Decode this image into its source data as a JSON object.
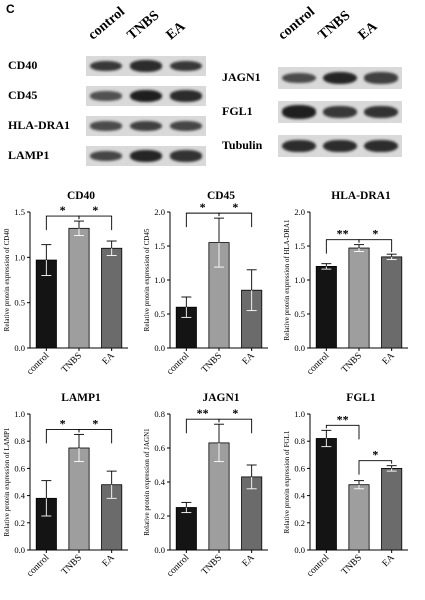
{
  "panel_letter": "C",
  "blots": [
    {
      "lanes": [
        "control",
        "TNBS",
        "EA"
      ],
      "rows": [
        {
          "label": "CD40",
          "intensity": [
            0.75,
            0.85,
            0.75
          ]
        },
        {
          "label": "CD45",
          "intensity": [
            0.55,
            0.95,
            0.85
          ]
        },
        {
          "label": "HLA-DRA1",
          "intensity": [
            0.6,
            0.7,
            0.65
          ]
        },
        {
          "label": "LAMP1",
          "intensity": [
            0.65,
            0.9,
            0.8
          ]
        }
      ]
    },
    {
      "lanes": [
        "control",
        "TNBS",
        "EA"
      ],
      "rows": [
        {
          "label": "JAGN1",
          "intensity": [
            0.6,
            0.9,
            0.7
          ]
        },
        {
          "label": "FGL1",
          "intensity": [
            0.95,
            0.75,
            0.8
          ]
        },
        {
          "label": "Tubulin",
          "intensity": [
            0.85,
            0.85,
            0.85
          ]
        }
      ]
    }
  ],
  "chart_data": [
    {
      "type": "bar",
      "title": "CD40",
      "ylabel": "Relative protein expression of CD40",
      "categories": [
        "control",
        "TNBS",
        "EA"
      ],
      "values": [
        0.97,
        1.32,
        1.1
      ],
      "errors": [
        0.17,
        0.08,
        0.08
      ],
      "ylim": [
        0,
        1.5
      ],
      "yticks": [
        0.0,
        0.5,
        1.0,
        1.5
      ],
      "sig": [
        {
          "from": 0,
          "to": 1,
          "label": "*"
        },
        {
          "from": 1,
          "to": 2,
          "label": "*"
        }
      ]
    },
    {
      "type": "bar",
      "title": "CD45",
      "ylabel": "Relative protein expression of CD45",
      "categories": [
        "control",
        "TNBS",
        "EA"
      ],
      "values": [
        0.6,
        1.55,
        0.85
      ],
      "errors": [
        0.15,
        0.36,
        0.3
      ],
      "ylim": [
        0,
        2.0
      ],
      "yticks": [
        0.0,
        0.5,
        1.0,
        1.5,
        2.0
      ],
      "sig": [
        {
          "from": 0,
          "to": 1,
          "label": "*"
        },
        {
          "from": 1,
          "to": 2,
          "label": "*"
        }
      ]
    },
    {
      "type": "bar",
      "title": "HLA-DRA1",
      "ylabel": "Relative protein expression of HLA-DRA1",
      "categories": [
        "control",
        "TNBS",
        "EA"
      ],
      "values": [
        1.2,
        1.47,
        1.34
      ],
      "errors": [
        0.04,
        0.05,
        0.04
      ],
      "ylim": [
        0,
        2.0
      ],
      "yticks": [
        0.0,
        0.5,
        1.0,
        1.5,
        2.0
      ],
      "sig": [
        {
          "from": 0,
          "to": 1,
          "label": "**"
        },
        {
          "from": 1,
          "to": 2,
          "label": "*"
        }
      ]
    },
    {
      "type": "bar",
      "title": "LAMP1",
      "ylabel": "Relative protein expression of LAMP1",
      "categories": [
        "control",
        "TNBS",
        "EA"
      ],
      "values": [
        0.38,
        0.75,
        0.48
      ],
      "errors": [
        0.13,
        0.1,
        0.1
      ],
      "ylim": [
        0,
        1.0
      ],
      "yticks": [
        0.0,
        0.2,
        0.4,
        0.6,
        0.8,
        1.0
      ],
      "sig": [
        {
          "from": 0,
          "to": 1,
          "label": "*"
        },
        {
          "from": 1,
          "to": 2,
          "label": "*"
        }
      ]
    },
    {
      "type": "bar",
      "title": "JAGN1",
      "ylabel": "Relative protein expression of JAGN1",
      "categories": [
        "control",
        "TNBS",
        "EA"
      ],
      "values": [
        0.25,
        0.63,
        0.43
      ],
      "errors": [
        0.03,
        0.11,
        0.07
      ],
      "ylim": [
        0,
        0.8
      ],
      "yticks": [
        0.0,
        0.2,
        0.4,
        0.6,
        0.8
      ],
      "sig": [
        {
          "from": 0,
          "to": 1,
          "label": "**"
        },
        {
          "from": 1,
          "to": 2,
          "label": "*"
        }
      ]
    },
    {
      "type": "bar",
      "title": "FGL1",
      "ylabel": "Relative protein expression of FGL1",
      "categories": [
        "control",
        "TNBS",
        "EA"
      ],
      "values": [
        0.82,
        0.48,
        0.6
      ],
      "errors": [
        0.06,
        0.03,
        0.02
      ],
      "ylim": [
        0,
        1.0
      ],
      "yticks": [
        0.0,
        0.2,
        0.4,
        0.6,
        0.8,
        1.0
      ],
      "sig": [
        {
          "from": 0,
          "to": 1,
          "label": "**"
        },
        {
          "from": 1,
          "to": 2,
          "label": "*"
        }
      ]
    }
  ],
  "colors": {
    "bars": [
      "#141414",
      "#9e9e9e",
      "#6b6b6b"
    ],
    "blot_bg": "#d9d9d9",
    "band": "#1a1a1a"
  }
}
